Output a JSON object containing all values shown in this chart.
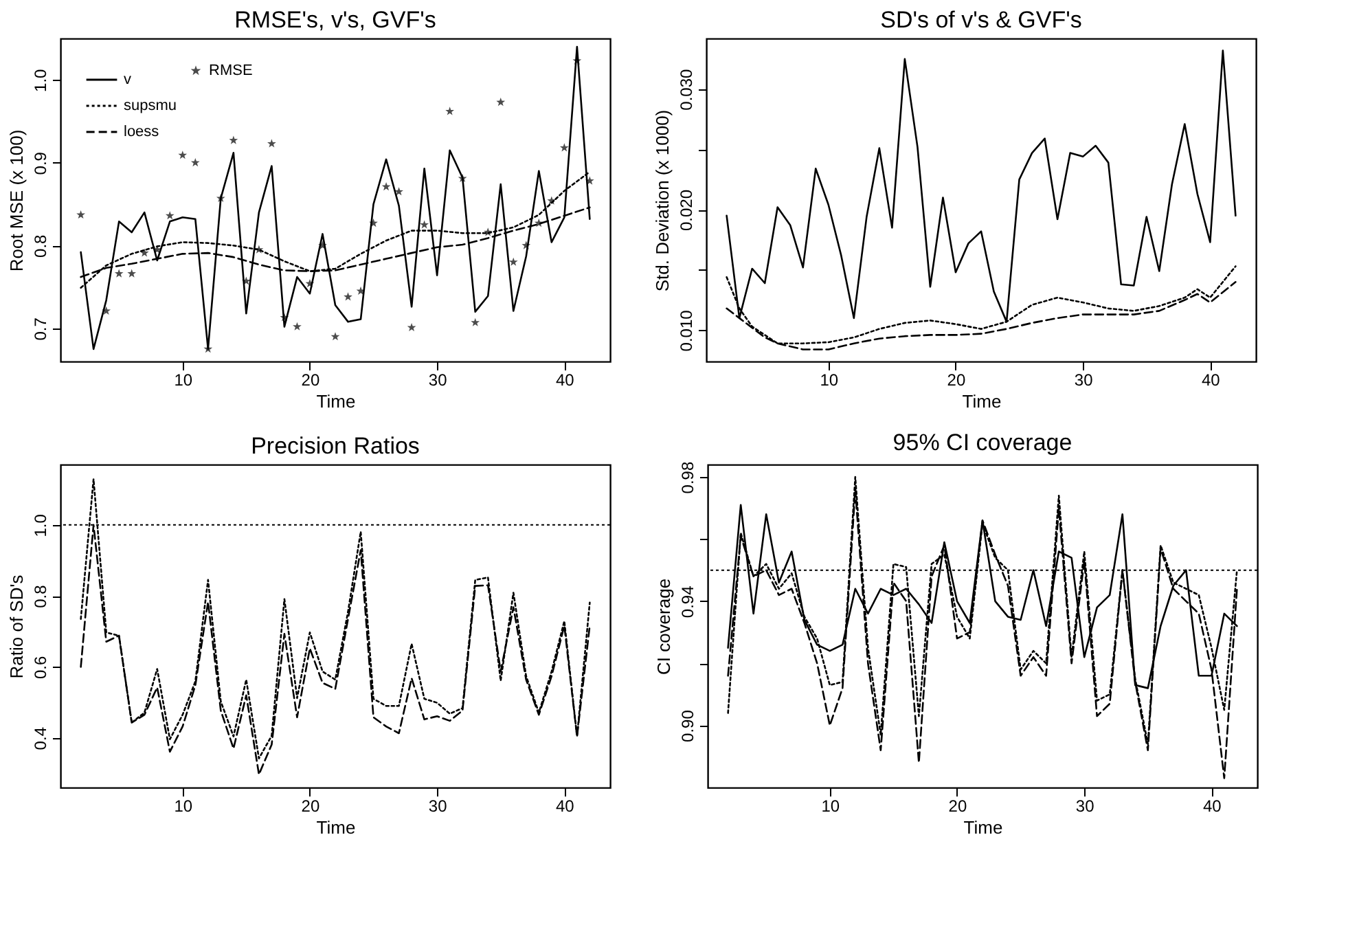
{
  "chart_data": [
    {
      "type": "line",
      "title": "RMSE's, v's, GVF's",
      "xlabel": "Time",
      "ylabel": "Root MSE (x 100)",
      "legend": "top left",
      "x": [
        2,
        3,
        4,
        5,
        6,
        7,
        8,
        9,
        10,
        11,
        12,
        13,
        14,
        15,
        16,
        17,
        18,
        19,
        20,
        21,
        22,
        23,
        24,
        25,
        26,
        27,
        28,
        29,
        30,
        31,
        32,
        33,
        34,
        35,
        36,
        37,
        38,
        39,
        40,
        41,
        42
      ],
      "xlim": [
        0.4,
        43.6
      ],
      "xticks": [
        10,
        20,
        30,
        40
      ],
      "ylim": [
        0.66,
        1.05
      ],
      "yticks": [
        {
          "value": 0.7,
          "label": "0.7"
        },
        {
          "value": 0.8,
          "label": "0.8"
        },
        {
          "value": 0.9,
          "label": "0.9"
        },
        {
          "value": 1.0,
          "label": "1.0"
        }
      ],
      "series": [
        {
          "name": "RMSE",
          "type": "scatter",
          "marker": "star",
          "color": "#000000",
          "values": [
            0.837,
            null,
            0.721,
            0.766,
            0.766,
            0.791,
            0.795,
            0.836,
            0.909,
            0.9,
            0.675,
            0.857,
            0.927,
            0.757,
            0.795,
            0.923,
            0.713,
            0.702,
            0.754,
            0.8,
            0.69,
            0.738,
            0.745,
            0.827,
            0.871,
            0.865,
            0.701,
            0.825,
            null,
            0.962,
            0.881,
            0.707,
            0.816,
            0.973,
            0.78,
            0.8,
            0.827,
            0.854,
            0.918,
            1.023,
            0.878
          ]
        },
        {
          "name": "v",
          "line_style": "solid",
          "color": "#000000",
          "values": [
            0.792,
            0.675,
            0.734,
            0.829,
            0.816,
            0.84,
            0.782,
            0.829,
            0.834,
            0.832,
            0.675,
            0.857,
            0.912,
            0.718,
            0.84,
            0.896,
            0.702,
            0.762,
            0.742,
            0.814,
            0.728,
            0.708,
            0.711,
            0.85,
            0.904,
            0.848,
            0.726,
            0.893,
            0.764,
            0.915,
            0.882,
            0.72,
            0.739,
            0.874,
            0.721,
            0.787,
            0.89,
            0.804,
            0.834,
            1.04,
            0.832
          ]
        },
        {
          "name": "supsmu",
          "line_style": "dotted",
          "color": "#000000",
          "x": [
            2,
            4,
            6,
            8,
            10,
            12,
            14,
            16,
            18,
            20,
            22,
            24,
            26,
            28,
            30,
            32,
            34,
            36,
            38,
            40,
            42
          ],
          "values": [
            0.749,
            0.776,
            0.79,
            0.799,
            0.804,
            0.803,
            0.8,
            0.795,
            0.781,
            0.769,
            0.772,
            0.79,
            0.806,
            0.818,
            0.818,
            0.815,
            0.815,
            0.822,
            0.837,
            0.866,
            0.889
          ]
        },
        {
          "name": "loess",
          "line_style": "dashed",
          "color": "#000000",
          "x": [
            2,
            4,
            6,
            8,
            10,
            12,
            14,
            16,
            18,
            20,
            22,
            24,
            26,
            28,
            30,
            32,
            34,
            36,
            38,
            40,
            42
          ],
          "values": [
            0.762,
            0.773,
            0.778,
            0.784,
            0.79,
            0.791,
            0.786,
            0.777,
            0.77,
            0.769,
            0.77,
            0.777,
            0.784,
            0.791,
            0.798,
            0.801,
            0.809,
            0.818,
            0.826,
            0.836,
            0.846
          ]
        }
      ]
    },
    {
      "type": "line",
      "title": "SD's of v's & GVF's",
      "xlabel": "Time",
      "ylabel": "Std. Deviation (x 1000)",
      "x": [
        2,
        3,
        4,
        5,
        6,
        7,
        8,
        9,
        10,
        11,
        12,
        13,
        14,
        15,
        16,
        17,
        18,
        19,
        20,
        21,
        22,
        23,
        24,
        25,
        26,
        27,
        28,
        29,
        30,
        31,
        32,
        33,
        34,
        35,
        36,
        37,
        38,
        39,
        40,
        41,
        42
      ],
      "xlim": [
        0.4,
        43.6
      ],
      "xticks": [
        10,
        20,
        30,
        40
      ],
      "ylim": [
        0.0074,
        0.0342
      ],
      "yticks": [
        {
          "value": 0.01,
          "label": "0.010"
        },
        {
          "value": 0.015,
          "label": null
        },
        {
          "value": 0.02,
          "label": "0.020"
        },
        {
          "value": 0.025,
          "label": null
        },
        {
          "value": 0.03,
          "label": "0.030"
        }
      ],
      "series": [
        {
          "line_style": "solid",
          "color": "#000000",
          "values": [
            0.0195,
            0.011,
            0.0151,
            0.0139,
            0.0202,
            0.0187,
            0.0152,
            0.0234,
            0.0204,
            0.0162,
            0.011,
            0.0194,
            0.0251,
            0.0185,
            0.0325,
            0.0252,
            0.0136,
            0.021,
            0.0148,
            0.0172,
            0.0182,
            0.0132,
            0.0107,
            0.0225,
            0.0247,
            0.0259,
            0.0192,
            0.0247,
            0.0244,
            0.0253,
            0.0239,
            0.0138,
            0.0137,
            0.0194,
            0.0149,
            0.0221,
            0.0271,
            0.0213,
            0.0173,
            0.0332,
            0.0195
          ]
        },
        {
          "line_style": "dotted",
          "color": "#000000",
          "x": [
            2,
            3,
            4,
            5,
            6,
            8,
            10,
            12,
            14,
            16,
            18,
            20,
            22,
            24,
            26,
            28,
            30,
            32,
            34,
            36,
            38,
            39,
            40,
            42
          ],
          "values": [
            0.0144,
            0.0118,
            0.0103,
            0.0096,
            0.0089,
            0.0089,
            0.009,
            0.0094,
            0.0101,
            0.0106,
            0.0108,
            0.0105,
            0.0101,
            0.0107,
            0.0121,
            0.0127,
            0.0123,
            0.0118,
            0.0116,
            0.012,
            0.0127,
            0.0134,
            0.0127,
            0.0153
          ]
        },
        {
          "line_style": "dashed",
          "color": "#000000",
          "x": [
            2,
            3,
            4,
            5,
            6,
            8,
            10,
            12,
            14,
            16,
            18,
            20,
            22,
            24,
            26,
            28,
            30,
            32,
            34,
            36,
            38,
            39,
            40,
            42
          ],
          "values": [
            0.0118,
            0.011,
            0.0102,
            0.0094,
            0.0089,
            0.0084,
            0.0084,
            0.0089,
            0.0093,
            0.0095,
            0.0096,
            0.0096,
            0.0097,
            0.0101,
            0.0106,
            0.011,
            0.0113,
            0.0113,
            0.0113,
            0.0116,
            0.0125,
            0.013,
            0.0123,
            0.014
          ]
        }
      ]
    },
    {
      "type": "line",
      "title": "Precision Ratios",
      "xlabel": "Time",
      "ylabel": "Ratio of SD's",
      "x": [
        2,
        3,
        4,
        5,
        6,
        7,
        8,
        9,
        10,
        11,
        12,
        13,
        14,
        15,
        16,
        17,
        18,
        19,
        20,
        21,
        22,
        23,
        24,
        25,
        26,
        27,
        28,
        29,
        30,
        31,
        32,
        33,
        34,
        35,
        36,
        37,
        38,
        39,
        40,
        41,
        42
      ],
      "xlim": [
        0.4,
        43.6
      ],
      "xticks": [
        10,
        20,
        30,
        40
      ],
      "ylim": [
        0.26,
        1.17
      ],
      "yticks": [
        {
          "value": 0.4,
          "label": "0.4"
        },
        {
          "value": 0.6,
          "label": "0.6"
        },
        {
          "value": 0.8,
          "label": "0.8"
        },
        {
          "value": 1.0,
          "label": "1.0"
        }
      ],
      "ref_lines": [
        {
          "axis": "y",
          "value": 1.0,
          "line_style": "dotted",
          "color": "#000000"
        }
      ],
      "series": [
        {
          "line_style": "dotted",
          "color": "#000000",
          "values": [
            0.735,
            1.129,
            0.697,
            0.688,
            0.443,
            0.471,
            0.594,
            0.396,
            0.465,
            0.559,
            0.845,
            0.503,
            0.404,
            0.564,
            0.342,
            0.406,
            0.791,
            0.512,
            0.697,
            0.587,
            0.564,
            0.755,
            0.981,
            0.51,
            0.49,
            0.49,
            0.665,
            0.51,
            0.499,
            0.468,
            0.484,
            0.845,
            0.852,
            0.561,
            0.809,
            0.574,
            0.471,
            0.587,
            0.729,
            0.404,
            0.781
          ]
        },
        {
          "line_style": "dashed",
          "color": "#000000",
          "values": [
            0.6,
            1.0,
            0.671,
            0.688,
            0.443,
            0.465,
            0.542,
            0.361,
            0.432,
            0.548,
            0.783,
            0.477,
            0.37,
            0.52,
            0.297,
            0.381,
            0.693,
            0.458,
            0.652,
            0.555,
            0.538,
            0.735,
            0.929,
            0.458,
            0.432,
            0.413,
            0.568,
            0.452,
            0.461,
            0.448,
            0.477,
            0.828,
            0.83,
            0.587,
            0.768,
            0.564,
            0.465,
            0.574,
            0.716,
            0.404,
            0.716
          ]
        }
      ]
    },
    {
      "type": "line",
      "title": "95% CI coverage",
      "xlabel": "Time",
      "ylabel": "CI coverage",
      "x": [
        2,
        3,
        4,
        5,
        6,
        7,
        8,
        9,
        10,
        11,
        12,
        13,
        14,
        15,
        16,
        17,
        18,
        19,
        20,
        21,
        22,
        23,
        24,
        25,
        26,
        27,
        28,
        29,
        30,
        31,
        32,
        33,
        34,
        35,
        36,
        37,
        38,
        39,
        40,
        41,
        42
      ],
      "xlim": [
        0.4,
        43.6
      ],
      "xticks": [
        10,
        20,
        30,
        40
      ],
      "ylim": [
        0.88,
        0.984
      ],
      "yticks": [
        {
          "value": 0.9,
          "label": "0.90"
        },
        {
          "value": 0.92,
          "label": null
        },
        {
          "value": 0.94,
          "label": "0.94"
        },
        {
          "value": 0.96,
          "label": null
        },
        {
          "value": 0.98,
          "label": "0.98"
        }
      ],
      "ref_lines": [
        {
          "axis": "y",
          "value": 0.95,
          "line_style": "dotted",
          "color": "#000000"
        }
      ],
      "series": [
        {
          "line_style": "solid",
          "color": "#000000",
          "values": [
            0.925,
            0.971,
            0.936,
            0.968,
            0.946,
            0.956,
            0.934,
            0.926,
            0.924,
            0.926,
            0.944,
            0.936,
            0.944,
            0.942,
            0.944,
            0.939,
            0.933,
            0.959,
            0.94,
            0.933,
            0.966,
            0.94,
            0.935,
            0.934,
            0.95,
            0.932,
            0.956,
            0.954,
            0.922,
            0.938,
            0.942,
            0.968,
            0.913,
            0.912,
            0.932,
            0.945,
            0.95,
            0.916,
            0.916,
            0.936,
            0.932
          ]
        },
        {
          "line_style": "dotted",
          "color": "#000000",
          "values": [
            0.904,
            0.962,
            0.948,
            0.952,
            0.944,
            0.949,
            0.935,
            0.928,
            0.913,
            0.914,
            0.98,
            0.925,
            0.897,
            0.952,
            0.951,
            0.903,
            0.952,
            0.955,
            0.935,
            0.928,
            0.965,
            0.954,
            0.95,
            0.918,
            0.924,
            0.92,
            0.974,
            0.922,
            0.956,
            0.908,
            0.91,
            0.95,
            0.915,
            0.894,
            0.958,
            0.946,
            0.944,
            0.942,
            0.925,
            0.905,
            0.95
          ]
        },
        {
          "line_style": "dashed",
          "color": "#000000",
          "values": [
            0.916,
            0.961,
            0.948,
            0.95,
            0.942,
            0.944,
            0.933,
            0.92,
            0.9,
            0.912,
            0.976,
            0.92,
            0.892,
            0.946,
            0.94,
            0.888,
            0.948,
            0.958,
            0.928,
            0.93,
            0.966,
            0.955,
            0.945,
            0.916,
            0.922,
            0.916,
            0.97,
            0.92,
            0.953,
            0.903,
            0.907,
            0.95,
            0.914,
            0.892,
            0.957,
            0.944,
            0.94,
            0.936,
            0.918,
            0.883,
            0.944
          ]
        }
      ]
    }
  ]
}
